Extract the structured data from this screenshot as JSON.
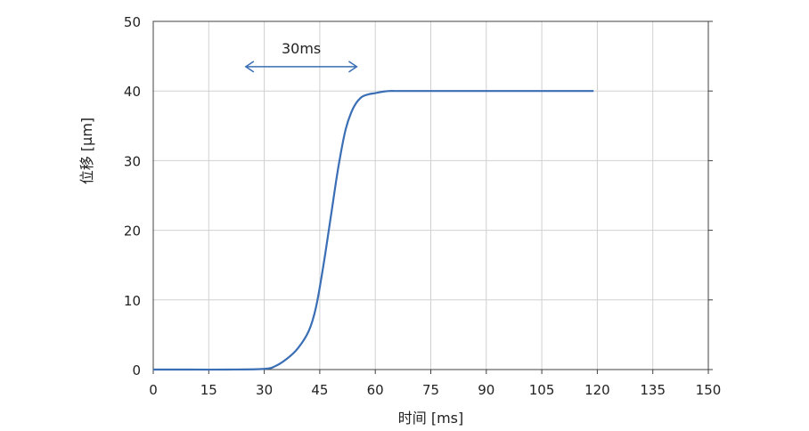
{
  "chart_data": {
    "type": "line",
    "xlabel": "时间 [ms]",
    "ylabel": "位移 [μm]",
    "xlim": [
      0,
      150
    ],
    "ylim": [
      0,
      50
    ],
    "xticks": [
      0,
      15,
      30,
      45,
      60,
      75,
      90,
      105,
      120,
      135,
      150
    ],
    "yticks": [
      0,
      10,
      20,
      30,
      40,
      50
    ],
    "grid": true,
    "series": [
      {
        "color": "#3a6eb5",
        "x": [
          0,
          10,
          20,
          30,
          33,
          36,
          39,
          42,
          44,
          46,
          48,
          50,
          52,
          54,
          56,
          58,
          60,
          62,
          64,
          66,
          70,
          80,
          100,
          119
        ],
        "y": [
          0,
          0,
          0,
          0.1,
          0.5,
          1.5,
          3.0,
          5.5,
          9.0,
          15.0,
          22.0,
          29.0,
          34.5,
          37.5,
          39.0,
          39.5,
          39.7,
          39.9,
          40.0,
          40.0,
          40.0,
          40.0,
          40.0,
          40.0
        ]
      }
    ],
    "annotations": [
      {
        "text": "30ms",
        "type": "double-arrow",
        "x_start": 25,
        "x_end": 55,
        "y": 43.5,
        "color": "#3a6eb5"
      }
    ]
  }
}
